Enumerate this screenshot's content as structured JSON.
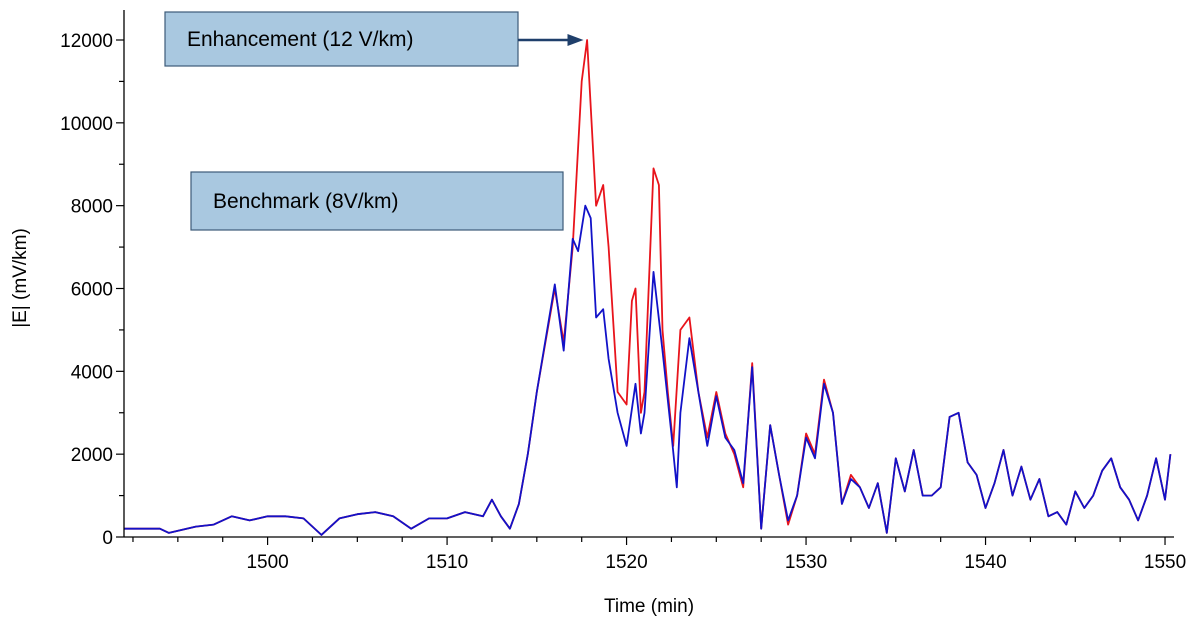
{
  "chart_data": {
    "type": "line",
    "title": "",
    "xlabel": "Time (min)",
    "ylabel": "|E| (mV/km)",
    "xlim": [
      1492,
      1550.5
    ],
    "ylim": [
      0,
      12000
    ],
    "x_ticks": [
      1500,
      1510,
      1520,
      1530,
      1540,
      1550
    ],
    "x_minor_step": 2.5,
    "y_ticks": [
      0,
      2000,
      4000,
      6000,
      8000,
      10000,
      12000
    ],
    "y_minor_step": 1000,
    "grid": false,
    "series": [
      {
        "name": "Enhancement (12 V/km)",
        "color": "#e8141c",
        "points": [
          [
            1492.0,
            200
          ],
          [
            1494.0,
            200
          ],
          [
            1494.5,
            100
          ],
          [
            1496.0,
            250
          ],
          [
            1497.0,
            300
          ],
          [
            1498.0,
            500
          ],
          [
            1499.0,
            400
          ],
          [
            1500.0,
            500
          ],
          [
            1501.0,
            500
          ],
          [
            1502.0,
            450
          ],
          [
            1503.0,
            50
          ],
          [
            1504.0,
            450
          ],
          [
            1505.0,
            550
          ],
          [
            1506.0,
            600
          ],
          [
            1507.0,
            500
          ],
          [
            1508.0,
            200
          ],
          [
            1509.0,
            450
          ],
          [
            1510.0,
            450
          ],
          [
            1511.0,
            600
          ],
          [
            1512.0,
            500
          ],
          [
            1512.5,
            900
          ],
          [
            1513.0,
            500
          ],
          [
            1513.5,
            200
          ],
          [
            1514.0,
            800
          ],
          [
            1514.5,
            2000
          ],
          [
            1515.0,
            3500
          ],
          [
            1516.0,
            6000
          ],
          [
            1516.5,
            4700
          ],
          [
            1517.0,
            7000
          ],
          [
            1517.5,
            11000
          ],
          [
            1517.8,
            12000
          ],
          [
            1518.3,
            8000
          ],
          [
            1518.7,
            8500
          ],
          [
            1519.0,
            7000
          ],
          [
            1519.5,
            3500
          ],
          [
            1520.0,
            3200
          ],
          [
            1520.3,
            5700
          ],
          [
            1520.5,
            6000
          ],
          [
            1520.8,
            3000
          ],
          [
            1521.0,
            3500
          ],
          [
            1521.5,
            8900
          ],
          [
            1521.8,
            8500
          ],
          [
            1522.0,
            5000
          ],
          [
            1522.3,
            3500
          ],
          [
            1522.6,
            2200
          ],
          [
            1523.0,
            5000
          ],
          [
            1523.5,
            5300
          ],
          [
            1524.0,
            3500
          ],
          [
            1524.5,
            2400
          ],
          [
            1525.0,
            3500
          ],
          [
            1525.5,
            2500
          ],
          [
            1526.0,
            2000
          ],
          [
            1526.5,
            1200
          ],
          [
            1527.0,
            4200
          ],
          [
            1527.5,
            200
          ],
          [
            1528.0,
            2700
          ],
          [
            1528.5,
            1500
          ],
          [
            1529.0,
            300
          ],
          [
            1529.5,
            1000
          ],
          [
            1530.0,
            2500
          ],
          [
            1530.5,
            2000
          ],
          [
            1531.0,
            3800
          ],
          [
            1531.5,
            3000
          ],
          [
            1532.0,
            800
          ],
          [
            1532.5,
            1500
          ],
          [
            1533.0,
            1200
          ],
          [
            1533.5,
            700
          ],
          [
            1534.0,
            1300
          ],
          [
            1534.5,
            100
          ],
          [
            1535.0,
            1900
          ],
          [
            1535.5,
            1100
          ],
          [
            1536.0,
            2100
          ],
          [
            1536.5,
            1000
          ],
          [
            1537.0,
            1000
          ],
          [
            1537.5,
            1200
          ],
          [
            1538.0,
            2900
          ],
          [
            1538.5,
            3000
          ],
          [
            1539.0,
            1800
          ],
          [
            1539.5,
            1500
          ],
          [
            1540.0,
            700
          ],
          [
            1540.5,
            1300
          ],
          [
            1541.0,
            2100
          ],
          [
            1541.5,
            1000
          ],
          [
            1542.0,
            1700
          ],
          [
            1542.5,
            900
          ],
          [
            1543.0,
            1400
          ],
          [
            1543.5,
            500
          ],
          [
            1544.0,
            600
          ],
          [
            1544.5,
            300
          ],
          [
            1545.0,
            1100
          ],
          [
            1545.5,
            700
          ],
          [
            1546.0,
            1000
          ],
          [
            1546.5,
            1600
          ],
          [
            1547.0,
            1900
          ],
          [
            1547.5,
            1200
          ],
          [
            1548.0,
            900
          ],
          [
            1548.5,
            400
          ],
          [
            1549.0,
            1000
          ],
          [
            1549.5,
            1900
          ],
          [
            1550.0,
            900
          ],
          [
            1550.3,
            2000
          ]
        ]
      },
      {
        "name": "Benchmark (8V/km)",
        "color": "#1212c8",
        "points": [
          [
            1492.0,
            200
          ],
          [
            1494.0,
            200
          ],
          [
            1494.5,
            100
          ],
          [
            1496.0,
            250
          ],
          [
            1497.0,
            300
          ],
          [
            1498.0,
            500
          ],
          [
            1499.0,
            400
          ],
          [
            1500.0,
            500
          ],
          [
            1501.0,
            500
          ],
          [
            1502.0,
            450
          ],
          [
            1503.0,
            50
          ],
          [
            1504.0,
            450
          ],
          [
            1505.0,
            550
          ],
          [
            1506.0,
            600
          ],
          [
            1507.0,
            500
          ],
          [
            1508.0,
            200
          ],
          [
            1509.0,
            450
          ],
          [
            1510.0,
            450
          ],
          [
            1511.0,
            600
          ],
          [
            1512.0,
            500
          ],
          [
            1512.5,
            900
          ],
          [
            1513.0,
            500
          ],
          [
            1513.5,
            200
          ],
          [
            1514.0,
            800
          ],
          [
            1514.5,
            2000
          ],
          [
            1515.0,
            3500
          ],
          [
            1516.0,
            6100
          ],
          [
            1516.5,
            4500
          ],
          [
            1517.0,
            7200
          ],
          [
            1517.3,
            6900
          ],
          [
            1517.7,
            8000
          ],
          [
            1518.0,
            7700
          ],
          [
            1518.3,
            5300
          ],
          [
            1518.7,
            5500
          ],
          [
            1519.0,
            4300
          ],
          [
            1519.5,
            3000
          ],
          [
            1520.0,
            2200
          ],
          [
            1520.5,
            3700
          ],
          [
            1520.8,
            2500
          ],
          [
            1521.0,
            3000
          ],
          [
            1521.5,
            6400
          ],
          [
            1522.0,
            4500
          ],
          [
            1522.5,
            2500
          ],
          [
            1522.8,
            1200
          ],
          [
            1523.0,
            3000
          ],
          [
            1523.5,
            4800
          ],
          [
            1524.0,
            3500
          ],
          [
            1524.5,
            2200
          ],
          [
            1525.0,
            3400
          ],
          [
            1525.5,
            2400
          ],
          [
            1526.0,
            2100
          ],
          [
            1526.5,
            1300
          ],
          [
            1527.0,
            4100
          ],
          [
            1527.5,
            200
          ],
          [
            1528.0,
            2700
          ],
          [
            1528.5,
            1500
          ],
          [
            1529.0,
            400
          ],
          [
            1529.5,
            1000
          ],
          [
            1530.0,
            2400
          ],
          [
            1530.5,
            1900
          ],
          [
            1531.0,
            3700
          ],
          [
            1531.5,
            3000
          ],
          [
            1532.0,
            800
          ],
          [
            1532.5,
            1400
          ],
          [
            1533.0,
            1200
          ],
          [
            1533.5,
            700
          ],
          [
            1534.0,
            1300
          ],
          [
            1534.5,
            100
          ],
          [
            1535.0,
            1900
          ],
          [
            1535.5,
            1100
          ],
          [
            1536.0,
            2100
          ],
          [
            1536.5,
            1000
          ],
          [
            1537.0,
            1000
          ],
          [
            1537.5,
            1200
          ],
          [
            1538.0,
            2900
          ],
          [
            1538.5,
            3000
          ],
          [
            1539.0,
            1800
          ],
          [
            1539.5,
            1500
          ],
          [
            1540.0,
            700
          ],
          [
            1540.5,
            1300
          ],
          [
            1541.0,
            2100
          ],
          [
            1541.5,
            1000
          ],
          [
            1542.0,
            1700
          ],
          [
            1542.5,
            900
          ],
          [
            1543.0,
            1400
          ],
          [
            1543.5,
            500
          ],
          [
            1544.0,
            600
          ],
          [
            1544.5,
            300
          ],
          [
            1545.0,
            1100
          ],
          [
            1545.5,
            700
          ],
          [
            1546.0,
            1000
          ],
          [
            1546.5,
            1600
          ],
          [
            1547.0,
            1900
          ],
          [
            1547.5,
            1200
          ],
          [
            1548.0,
            900
          ],
          [
            1548.5,
            400
          ],
          [
            1549.0,
            1000
          ],
          [
            1549.5,
            1900
          ],
          [
            1550.0,
            900
          ],
          [
            1550.3,
            2000
          ]
        ]
      }
    ],
    "annotations": [
      {
        "id": "enhancement",
        "text": "Enhancement (12 V/km)",
        "box_fill": "#a9c8e0",
        "box_stroke": "#3d5a78",
        "arrow_color": "#1f3f6b",
        "arrow_to": [
          1517.6,
          12000
        ],
        "anchor_data": [
          1500.5,
          12000
        ]
      },
      {
        "id": "benchmark",
        "text": "Benchmark (8V/km)",
        "box_fill": "#a9c8e0",
        "box_stroke": "#3d5a78",
        "anchor_data": [
          1502.5,
          8000
        ]
      }
    ]
  }
}
